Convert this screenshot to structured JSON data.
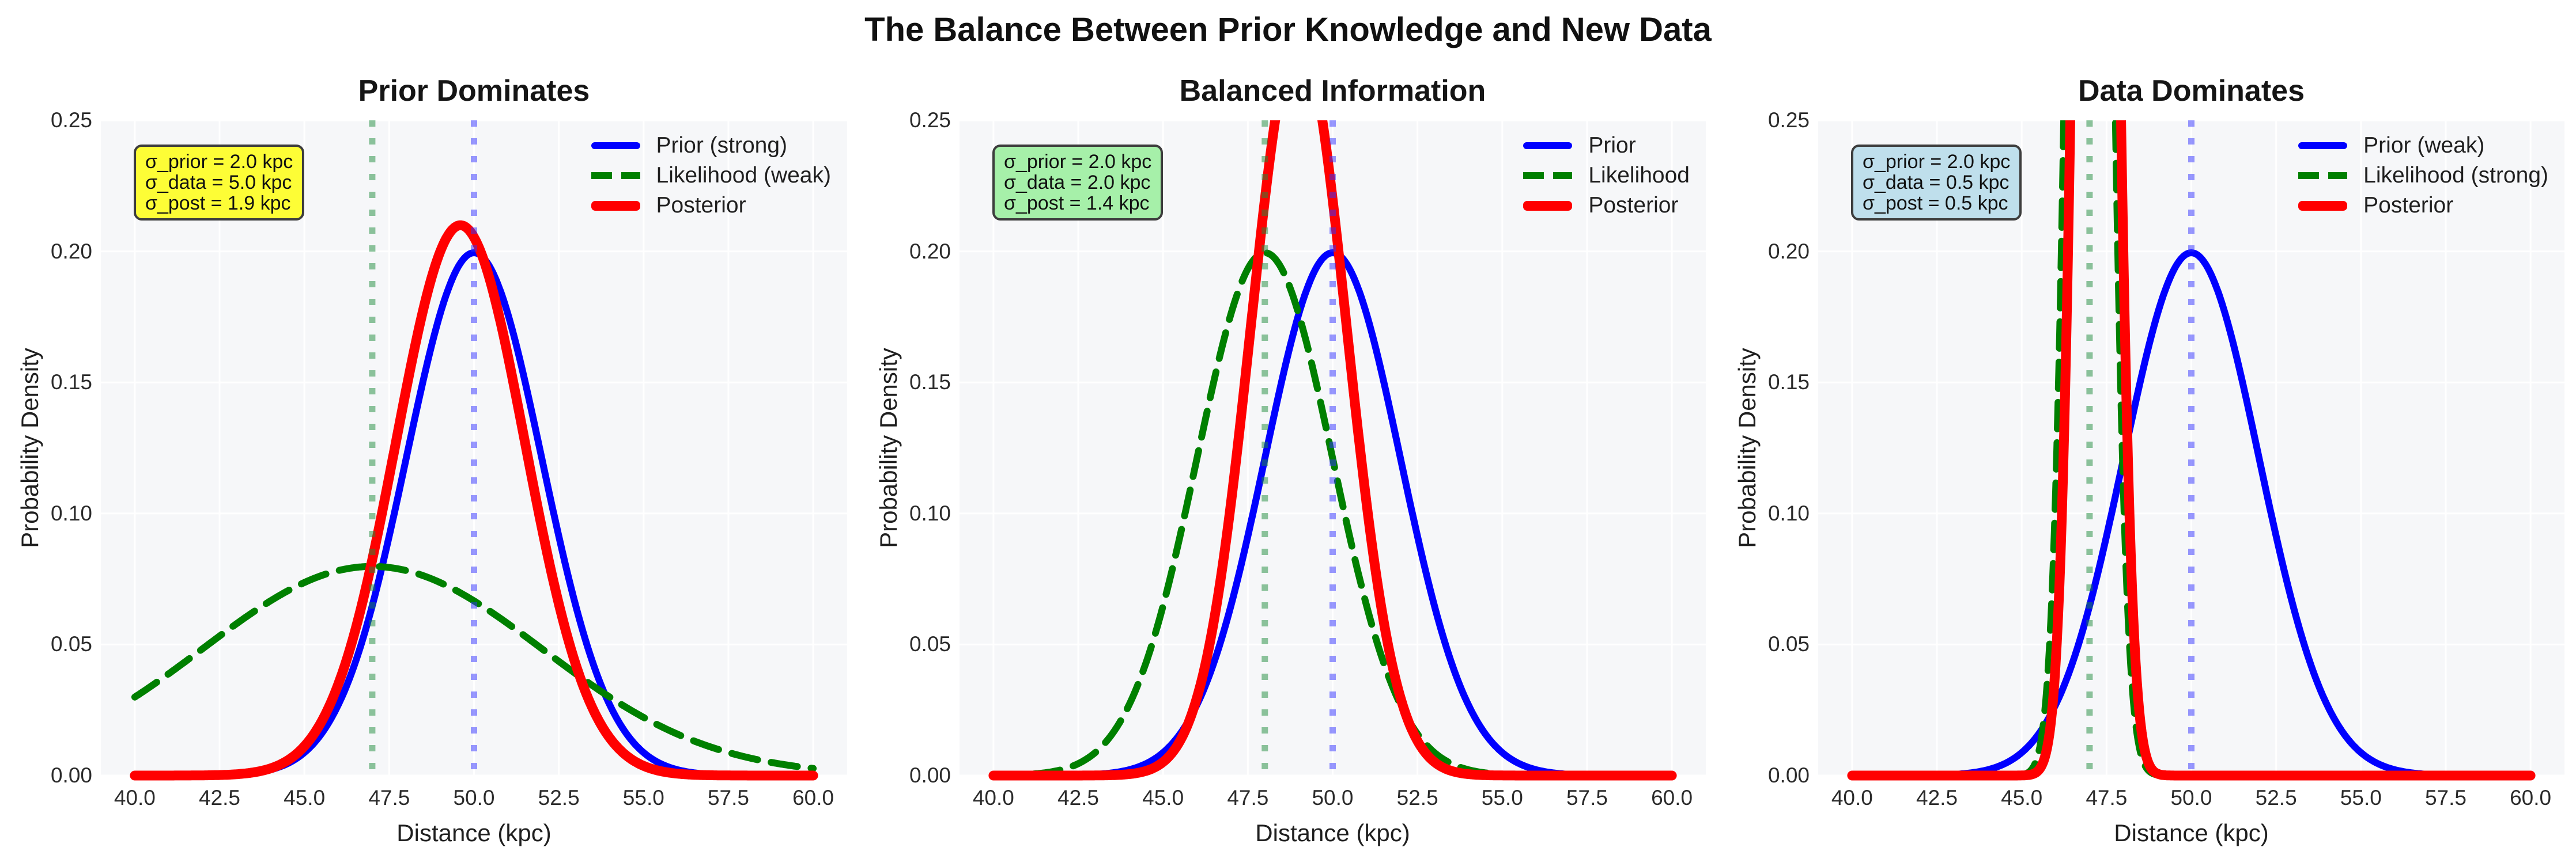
{
  "figure_title": "The Balance Between Prior Knowledge and New Data",
  "colors": {
    "figure_bg": "#ffffff",
    "axes_bg": "#f6f7f9",
    "grid": "#ffffff",
    "prior": "#0000ff",
    "likelihood": "#008000",
    "posterior": "#ff0000",
    "prior_vline": "rgba(50,50,255,0.5)",
    "likelihood_vline": "rgba(30,140,60,0.5)",
    "annotation_border": "#3d3d3d"
  },
  "axis": {
    "xlabel": "Distance (kpc)",
    "ylabel": "Probability Density",
    "xlim": [
      39,
      61
    ],
    "ylim": [
      0,
      0.25
    ],
    "curve_x_range": [
      40,
      60
    ],
    "xticks": [
      40,
      42.5,
      45,
      47.5,
      50,
      52.5,
      55,
      57.5,
      60
    ],
    "xtick_labels": [
      "40.0",
      "42.5",
      "45.0",
      "47.5",
      "50.0",
      "52.5",
      "55.0",
      "57.5",
      "60.0"
    ],
    "yticks": [
      0,
      0.05,
      0.1,
      0.15,
      0.2,
      0.25
    ],
    "ytick_labels": [
      "0.00",
      "0.05",
      "0.10",
      "0.15",
      "0.20",
      "0.25"
    ],
    "grid": true
  },
  "chart_data": [
    {
      "type": "line",
      "title": "Prior Dominates",
      "series": [
        {
          "name": "Prior (strong)",
          "role": "prior",
          "distribution": "gaussian",
          "mean": 50.0,
          "sd": 2.0,
          "style": "solid",
          "lw": 12
        },
        {
          "name": "Likelihood (weak)",
          "role": "likelihood",
          "distribution": "gaussian",
          "mean": 47.0,
          "sd": 5.0,
          "style": "dashed",
          "lw": 12
        },
        {
          "name": "Posterior",
          "role": "posterior",
          "distribution": "gaussian",
          "mean": 49.6,
          "sd": 1.9,
          "style": "solid",
          "lw": 17
        }
      ],
      "vlines": [
        {
          "x": 47.0,
          "role": "likelihood"
        },
        {
          "x": 50.0,
          "role": "prior"
        }
      ],
      "annotation": {
        "lines": [
          "σ_prior = 2.0 kpc",
          "σ_data = 5.0 kpc",
          "σ_post = 1.9 kpc"
        ],
        "fill": "#fdfd36"
      }
    },
    {
      "type": "line",
      "title": "Balanced Information",
      "series": [
        {
          "name": "Prior",
          "role": "prior",
          "distribution": "gaussian",
          "mean": 50.0,
          "sd": 2.0,
          "style": "solid",
          "lw": 12
        },
        {
          "name": "Likelihood",
          "role": "likelihood",
          "distribution": "gaussian",
          "mean": 48.0,
          "sd": 2.0,
          "style": "dashed",
          "lw": 12
        },
        {
          "name": "Posterior",
          "role": "posterior",
          "distribution": "gaussian",
          "mean": 49.0,
          "sd": 1.414,
          "style": "solid",
          "lw": 17
        }
      ],
      "vlines": [
        {
          "x": 48.0,
          "role": "likelihood"
        },
        {
          "x": 50.0,
          "role": "prior"
        }
      ],
      "annotation": {
        "lines": [
          "σ_prior = 2.0 kpc",
          "σ_data = 2.0 kpc",
          "σ_post = 1.4 kpc"
        ],
        "fill": "#a6f0a9"
      }
    },
    {
      "type": "line",
      "title": "Data Dominates",
      "series": [
        {
          "name": "Prior (weak)",
          "role": "prior",
          "distribution": "gaussian",
          "mean": 50.0,
          "sd": 2.0,
          "style": "solid",
          "lw": 12
        },
        {
          "name": "Likelihood (strong)",
          "role": "likelihood",
          "distribution": "gaussian",
          "mean": 47.0,
          "sd": 0.5,
          "style": "dashed",
          "lw": 12
        },
        {
          "name": "Posterior",
          "role": "posterior",
          "distribution": "gaussian",
          "mean": 47.18,
          "sd": 0.485,
          "style": "solid",
          "lw": 17
        }
      ],
      "vlines": [
        {
          "x": 47.0,
          "role": "likelihood"
        },
        {
          "x": 50.0,
          "role": "prior"
        }
      ],
      "annotation": {
        "lines": [
          "σ_prior = 2.0 kpc",
          "σ_data = 0.5 kpc",
          "σ_post = 0.5 kpc"
        ],
        "fill": "#bfdfec"
      }
    }
  ]
}
